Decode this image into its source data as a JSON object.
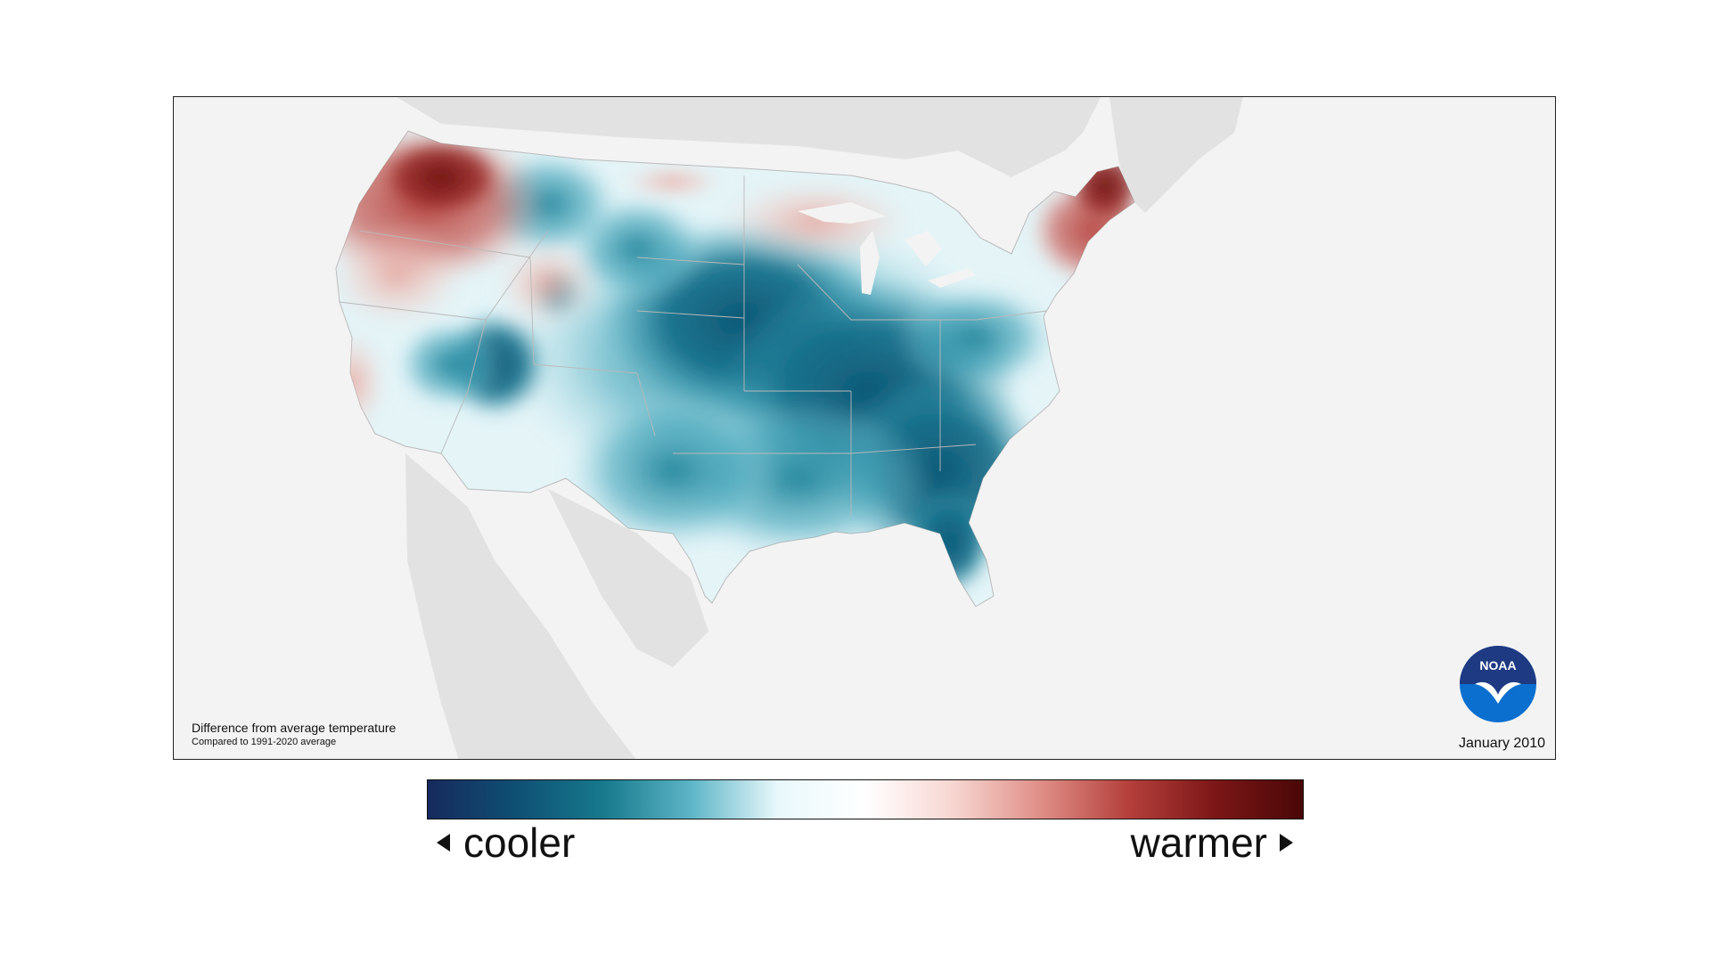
{
  "caption": {
    "line1": "Difference from average temperature",
    "line2": "Compared to 1991-2020 average"
  },
  "date": "January 2010",
  "logo": {
    "text": "NOAA",
    "icon": "noaa-logo-icon"
  },
  "legend": {
    "left_label": "cooler",
    "right_label": "warmer",
    "colors": [
      "#172a5e",
      "#0f4f74",
      "#17798c",
      "#5cb4c6",
      "#e9f8fb",
      "#ffffff",
      "#f7d6d1",
      "#df8f87",
      "#b5403c",
      "#7c1717",
      "#4a0707"
    ]
  },
  "colors": {
    "background": "#f3f3f3",
    "land_outside": "#e2e2e2",
    "frame": "#222222",
    "noaa_blue": "#0a6fcf",
    "noaa_navy": "#1e3a82"
  }
}
